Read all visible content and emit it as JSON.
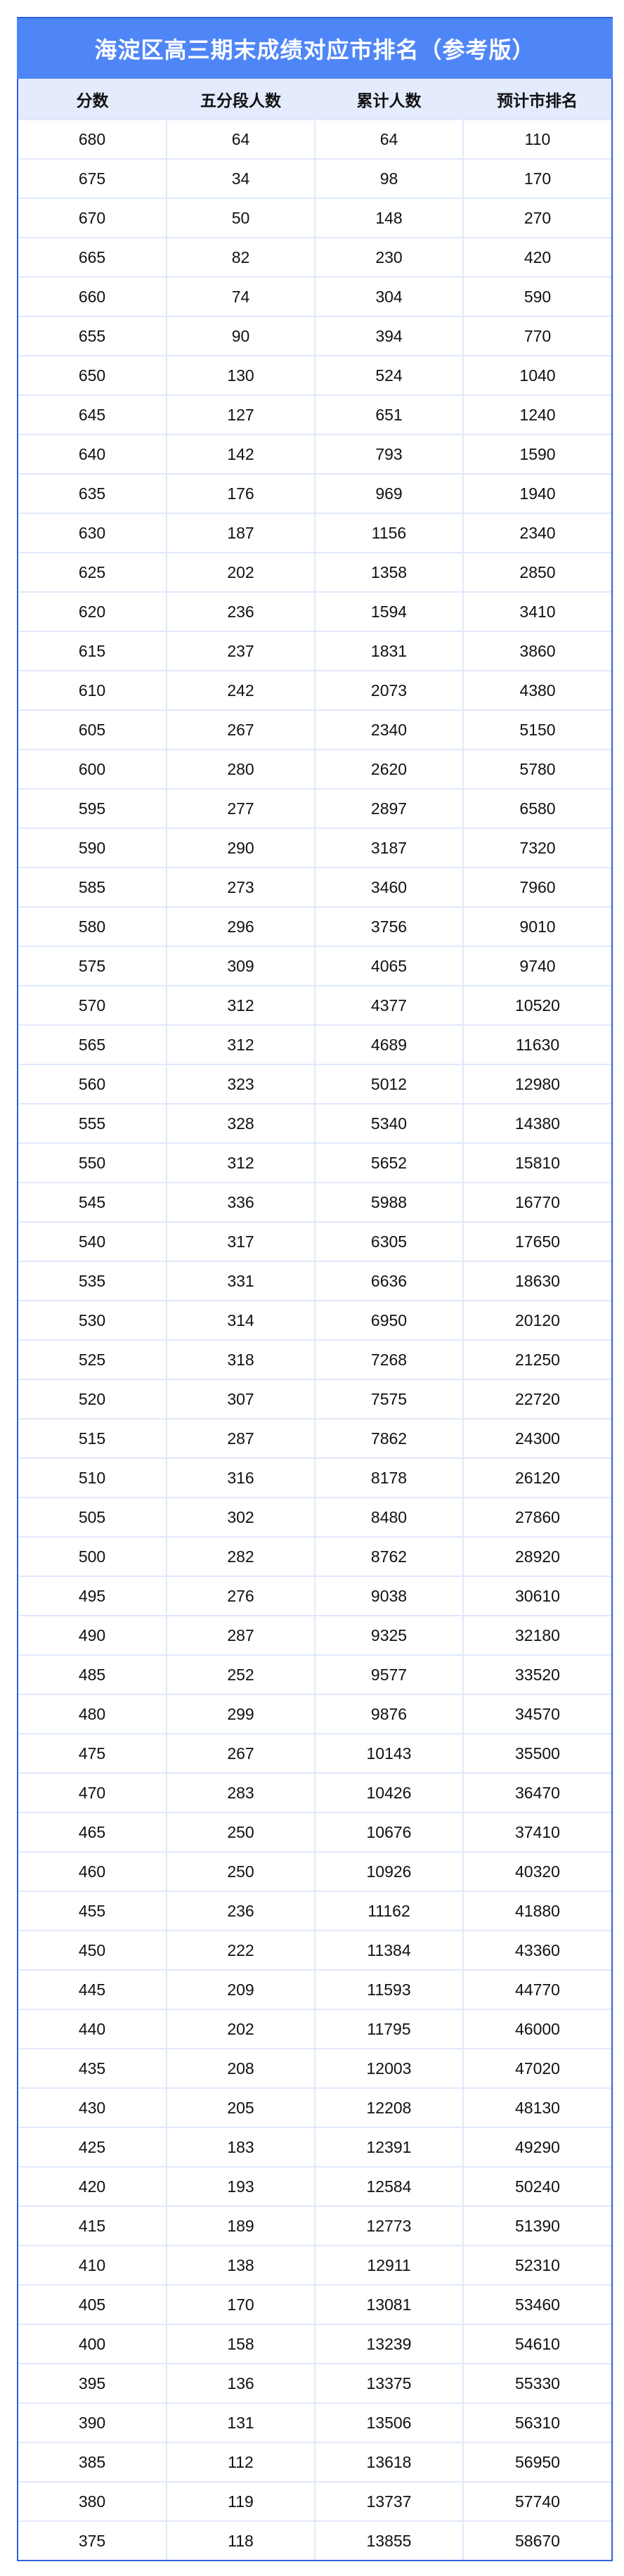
{
  "title": "海淀区高三期末成绩对应市排名（参考版）",
  "columns": [
    "分数",
    "五分段人数",
    "累计人数",
    "预计市排名"
  ],
  "colors": {
    "title_bg": "#4f86f7",
    "header_bg": "#e3ebfd",
    "border": "#2f62d8"
  },
  "rows": [
    [
      "680",
      "64",
      "64",
      "110"
    ],
    [
      "675",
      "34",
      "98",
      "170"
    ],
    [
      "670",
      "50",
      "148",
      "270"
    ],
    [
      "665",
      "82",
      "230",
      "420"
    ],
    [
      "660",
      "74",
      "304",
      "590"
    ],
    [
      "655",
      "90",
      "394",
      "770"
    ],
    [
      "650",
      "130",
      "524",
      "1040"
    ],
    [
      "645",
      "127",
      "651",
      "1240"
    ],
    [
      "640",
      "142",
      "793",
      "1590"
    ],
    [
      "635",
      "176",
      "969",
      "1940"
    ],
    [
      "630",
      "187",
      "1156",
      "2340"
    ],
    [
      "625",
      "202",
      "1358",
      "2850"
    ],
    [
      "620",
      "236",
      "1594",
      "3410"
    ],
    [
      "615",
      "237",
      "1831",
      "3860"
    ],
    [
      "610",
      "242",
      "2073",
      "4380"
    ],
    [
      "605",
      "267",
      "2340",
      "5150"
    ],
    [
      "600",
      "280",
      "2620",
      "5780"
    ],
    [
      "595",
      "277",
      "2897",
      "6580"
    ],
    [
      "590",
      "290",
      "3187",
      "7320"
    ],
    [
      "585",
      "273",
      "3460",
      "7960"
    ],
    [
      "580",
      "296",
      "3756",
      "9010"
    ],
    [
      "575",
      "309",
      "4065",
      "9740"
    ],
    [
      "570",
      "312",
      "4377",
      "10520"
    ],
    [
      "565",
      "312",
      "4689",
      "11630"
    ],
    [
      "560",
      "323",
      "5012",
      "12980"
    ],
    [
      "555",
      "328",
      "5340",
      "14380"
    ],
    [
      "550",
      "312",
      "5652",
      "15810"
    ],
    [
      "545",
      "336",
      "5988",
      "16770"
    ],
    [
      "540",
      "317",
      "6305",
      "17650"
    ],
    [
      "535",
      "331",
      "6636",
      "18630"
    ],
    [
      "530",
      "314",
      "6950",
      "20120"
    ],
    [
      "525",
      "318",
      "7268",
      "21250"
    ],
    [
      "520",
      "307",
      "7575",
      "22720"
    ],
    [
      "515",
      "287",
      "7862",
      "24300"
    ],
    [
      "510",
      "316",
      "8178",
      "26120"
    ],
    [
      "505",
      "302",
      "8480",
      "27860"
    ],
    [
      "500",
      "282",
      "8762",
      "28920"
    ],
    [
      "495",
      "276",
      "9038",
      "30610"
    ],
    [
      "490",
      "287",
      "9325",
      "32180"
    ],
    [
      "485",
      "252",
      "9577",
      "33520"
    ],
    [
      "480",
      "299",
      "9876",
      "34570"
    ],
    [
      "475",
      "267",
      "10143",
      "35500"
    ],
    [
      "470",
      "283",
      "10426",
      "36470"
    ],
    [
      "465",
      "250",
      "10676",
      "37410"
    ],
    [
      "460",
      "250",
      "10926",
      "40320"
    ],
    [
      "455",
      "236",
      "11162",
      "41880"
    ],
    [
      "450",
      "222",
      "11384",
      "43360"
    ],
    [
      "445",
      "209",
      "11593",
      "44770"
    ],
    [
      "440",
      "202",
      "11795",
      "46000"
    ],
    [
      "435",
      "208",
      "12003",
      "47020"
    ],
    [
      "430",
      "205",
      "12208",
      "48130"
    ],
    [
      "425",
      "183",
      "12391",
      "49290"
    ],
    [
      "420",
      "193",
      "12584",
      "50240"
    ],
    [
      "415",
      "189",
      "12773",
      "51390"
    ],
    [
      "410",
      "138",
      "12911",
      "52310"
    ],
    [
      "405",
      "170",
      "13081",
      "53460"
    ],
    [
      "400",
      "158",
      "13239",
      "54610"
    ],
    [
      "395",
      "136",
      "13375",
      "55330"
    ],
    [
      "390",
      "131",
      "13506",
      "56310"
    ],
    [
      "385",
      "112",
      "13618",
      "56950"
    ],
    [
      "380",
      "119",
      "13737",
      "57740"
    ],
    [
      "375",
      "118",
      "13855",
      "58670"
    ]
  ]
}
